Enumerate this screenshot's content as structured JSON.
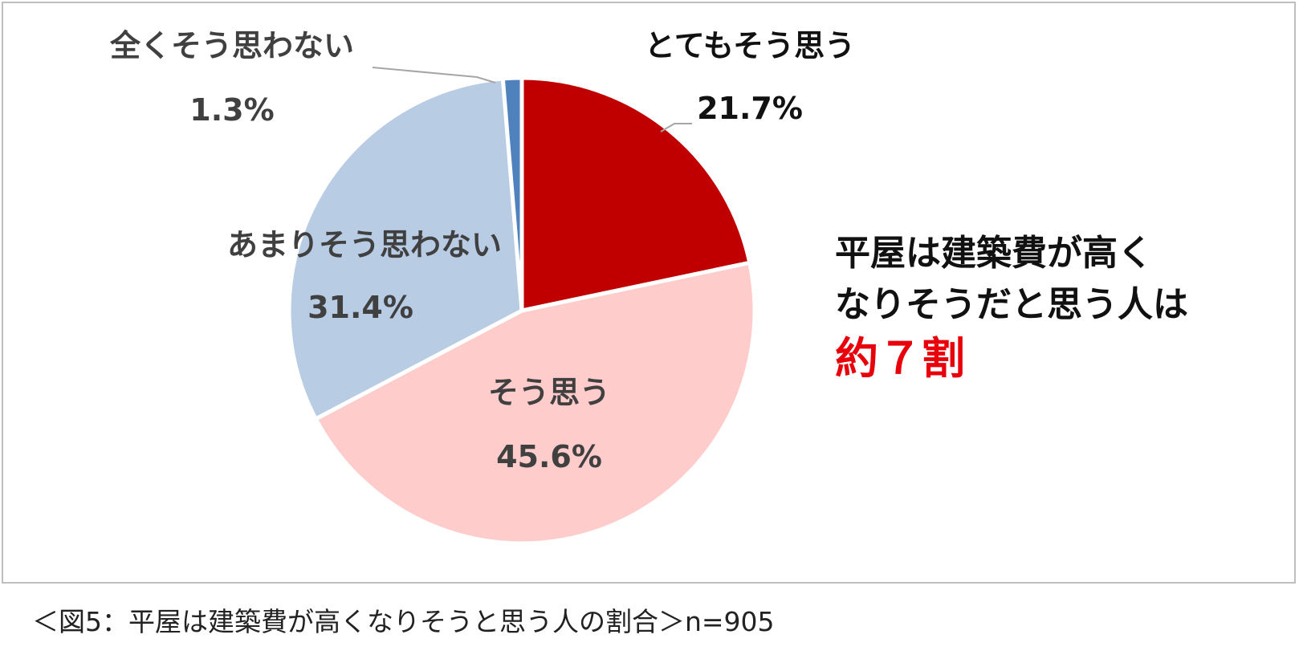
{
  "chart_data": {
    "type": "pie",
    "slices": [
      {
        "label": "とてもそう思う",
        "value": 21.7,
        "value_label": "21.7%",
        "color": "#c00000"
      },
      {
        "label": "そう思う",
        "value": 45.6,
        "value_label": "45.6%",
        "color": "#ffcccc"
      },
      {
        "label": "あまりそう思わない",
        "value": 31.4,
        "value_label": "31.4%",
        "color": "#b8cce4"
      },
      {
        "label": "全くそう思わない",
        "value": 1.3,
        "value_label": "1.3%",
        "color": "#4f81bd"
      }
    ],
    "start_angle_deg": 0,
    "direction": "clockwise"
  },
  "callout": {
    "line1": "平屋は建築費が高く",
    "line2": "なりそうだと思う人は",
    "emphasis": "約７割"
  },
  "caption": "＜図5：平屋は建築費が高くなりそうと思う人の割合＞n=905"
}
